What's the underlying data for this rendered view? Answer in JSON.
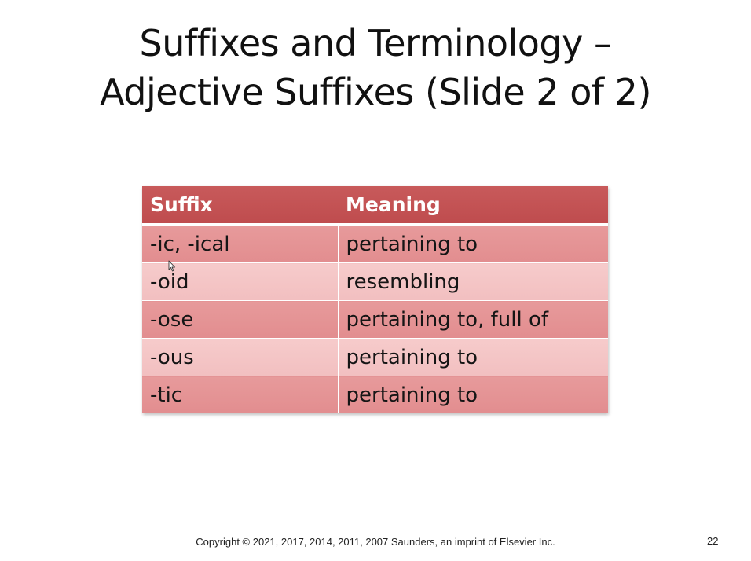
{
  "slide": {
    "title_line1": "Suffixes and Terminology –",
    "title_line2": "Adjective Suffixes (Slide 2 of 2)",
    "table": {
      "headers": [
        "Suffix",
        "Meaning"
      ],
      "rows": [
        {
          "suffix": "-ic, -ical",
          "meaning": "pertaining to"
        },
        {
          "suffix": "-oid",
          "meaning": "resembling"
        },
        {
          "suffix": "-ose",
          "meaning": "pertaining to, full of"
        },
        {
          "suffix": "-ous",
          "meaning": "pertaining to"
        },
        {
          "suffix": "-tic",
          "meaning": "pertaining to"
        }
      ]
    },
    "footer": "Copyright ©  2021, 2017, 2014, 2011, 2007 Saunders, an imprint of Elsevier Inc.",
    "page_number": "22"
  },
  "colors": {
    "header_bg": "#c0504d",
    "row_dark": "#e4908f",
    "row_light": "#f4c5c5"
  },
  "icons": {
    "cursor": "mouse-pointer-icon"
  }
}
